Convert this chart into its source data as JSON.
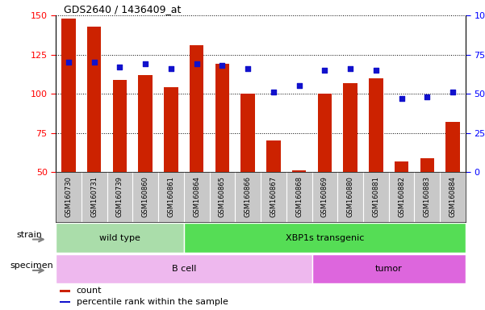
{
  "title": "GDS2640 / 1436409_at",
  "samples": [
    "GSM160730",
    "GSM160731",
    "GSM160739",
    "GSM160860",
    "GSM160861",
    "GSM160864",
    "GSM160865",
    "GSM160866",
    "GSM160867",
    "GSM160868",
    "GSM160869",
    "GSM160880",
    "GSM160881",
    "GSM160882",
    "GSM160883",
    "GSM160884"
  ],
  "counts": [
    148,
    143,
    109,
    112,
    104,
    131,
    119,
    100,
    70,
    51,
    100,
    107,
    110,
    57,
    59,
    82
  ],
  "percentiles": [
    70,
    70,
    67,
    69,
    66,
    69,
    68,
    66,
    51,
    55,
    65,
    66,
    65,
    47,
    48,
    51
  ],
  "ylim_left": [
    50,
    150
  ],
  "ylim_right": [
    0,
    100
  ],
  "yticks_left": [
    50,
    75,
    100,
    125,
    150
  ],
  "yticks_right": [
    0,
    25,
    50,
    75,
    100
  ],
  "ytick_labels_right": [
    "0",
    "25",
    "50",
    "75",
    "100%"
  ],
  "bar_color": "#cc2200",
  "dot_color": "#1111cc",
  "grid_color": "#000000",
  "strain_groups": [
    {
      "label": "wild type",
      "start": 0,
      "end": 4,
      "color": "#aaddaa"
    },
    {
      "label": "XBP1s transgenic",
      "start": 5,
      "end": 15,
      "color": "#55dd55"
    }
  ],
  "specimen_groups": [
    {
      "label": "B cell",
      "start": 0,
      "end": 9,
      "color": "#eeb8ee"
    },
    {
      "label": "tumor",
      "start": 10,
      "end": 15,
      "color": "#dd66dd"
    }
  ],
  "legend_items": [
    {
      "color": "#cc2200",
      "label": "count"
    },
    {
      "color": "#1111cc",
      "label": "percentile rank within the sample"
    }
  ],
  "xlabel_strain": "strain",
  "xlabel_specimen": "specimen",
  "bar_width": 0.55,
  "fig_bg": "#ffffff",
  "axes_bg": "#ffffff",
  "tick_area_bg": "#c8c8c8"
}
